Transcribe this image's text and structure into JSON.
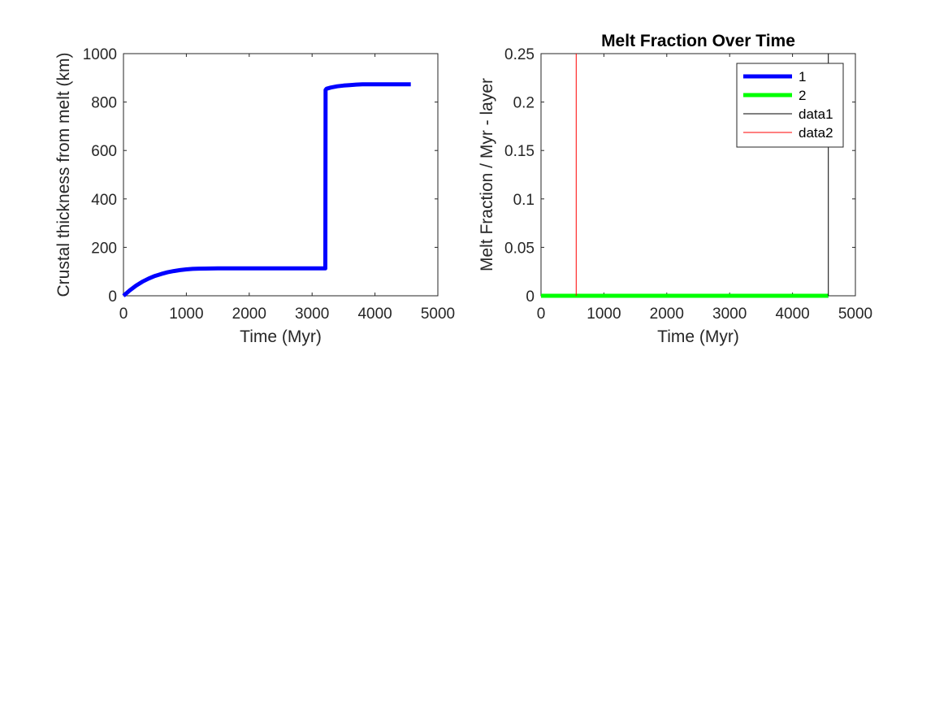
{
  "chart_data": [
    {
      "type": "line",
      "title": "",
      "xlabel": "Time (Myr)",
      "ylabel": "Crustal thickness from melt (km)",
      "xlim": [
        0,
        5000
      ],
      "ylim": [
        0,
        1000
      ],
      "xticks": [
        "0",
        "1000",
        "2000",
        "3000",
        "4000",
        "5000"
      ],
      "yticks": [
        "0",
        "200",
        "400",
        "600",
        "800",
        "1000"
      ],
      "grid": false,
      "series": [
        {
          "color": "#0000ff",
          "x": [
            0,
            100,
            200,
            300,
            400,
            500,
            600,
            700,
            800,
            900,
            1000,
            1100,
            1200,
            1500,
            2000,
            2500,
            3000,
            3210,
            3215,
            3230,
            3300,
            3400,
            3500,
            3600,
            3700,
            3800,
            4000,
            4300,
            4570
          ],
          "y": [
            0,
            22,
            42,
            58,
            71,
            82,
            90,
            97,
            102,
            106,
            109,
            111,
            112,
            113,
            113,
            113,
            113,
            113,
            850,
            855,
            860,
            865,
            868,
            870,
            872,
            873,
            873,
            873,
            873
          ]
        }
      ]
    },
    {
      "type": "line",
      "title": "Melt Fraction Over Time",
      "xlabel": "Time (Myr)",
      "ylabel": "Melt Fraction / Myr - layer",
      "xlim": [
        0,
        5000
      ],
      "ylim": [
        0,
        0.25
      ],
      "xticks": [
        "0",
        "1000",
        "2000",
        "3000",
        "4000",
        "5000"
      ],
      "yticks": [
        "0",
        "0.05",
        "0.1",
        "0.15",
        "0.2",
        "0.25"
      ],
      "grid": false,
      "legend_position": "top-right",
      "series": [
        {
          "name": "1",
          "color": "#0000ff",
          "x": [
            0,
            4570
          ],
          "y": [
            0,
            0
          ]
        },
        {
          "name": "2",
          "color": "#00ff00",
          "x": [
            0,
            4570
          ],
          "y": [
            0,
            0
          ]
        },
        {
          "name": "data1",
          "color": "#000000",
          "x": [
            4570,
            4570
          ],
          "y": [
            0,
            0.25
          ]
        },
        {
          "name": "data2",
          "color": "#ff0000",
          "x": [
            560,
            560
          ],
          "y": [
            0,
            0.25
          ]
        }
      ]
    }
  ]
}
